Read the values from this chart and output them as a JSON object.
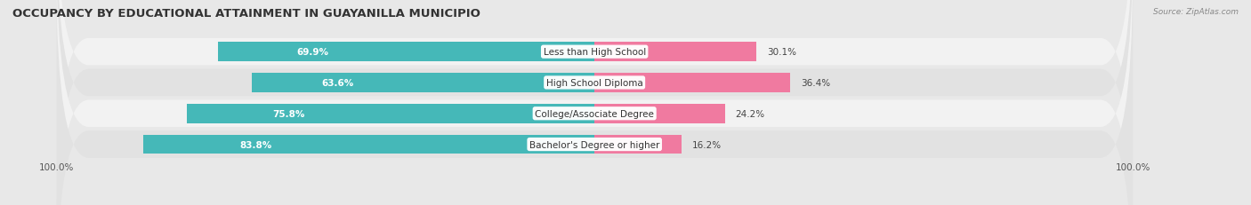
{
  "title": "OCCUPANCY BY EDUCATIONAL ATTAINMENT IN GUAYANILLA MUNICIPIO",
  "source": "Source: ZipAtlas.com",
  "categories": [
    "Less than High School",
    "High School Diploma",
    "College/Associate Degree",
    "Bachelor's Degree or higher"
  ],
  "owner_values": [
    69.9,
    63.6,
    75.8,
    83.8
  ],
  "renter_values": [
    30.1,
    36.4,
    24.2,
    16.2
  ],
  "owner_color": "#45b8b8",
  "renter_color": "#f07aa0",
  "bg_color": "#e8e8e8",
  "row_bg_even": "#f2f2f2",
  "row_bg_odd": "#e2e2e2",
  "title_fontsize": 9.5,
  "value_fontsize": 7.5,
  "cat_fontsize": 7.5,
  "tick_fontsize": 7.5,
  "source_fontsize": 6.5,
  "legend_fontsize": 7.5,
  "axis_label_left": "100.0%",
  "axis_label_right": "100.0%"
}
